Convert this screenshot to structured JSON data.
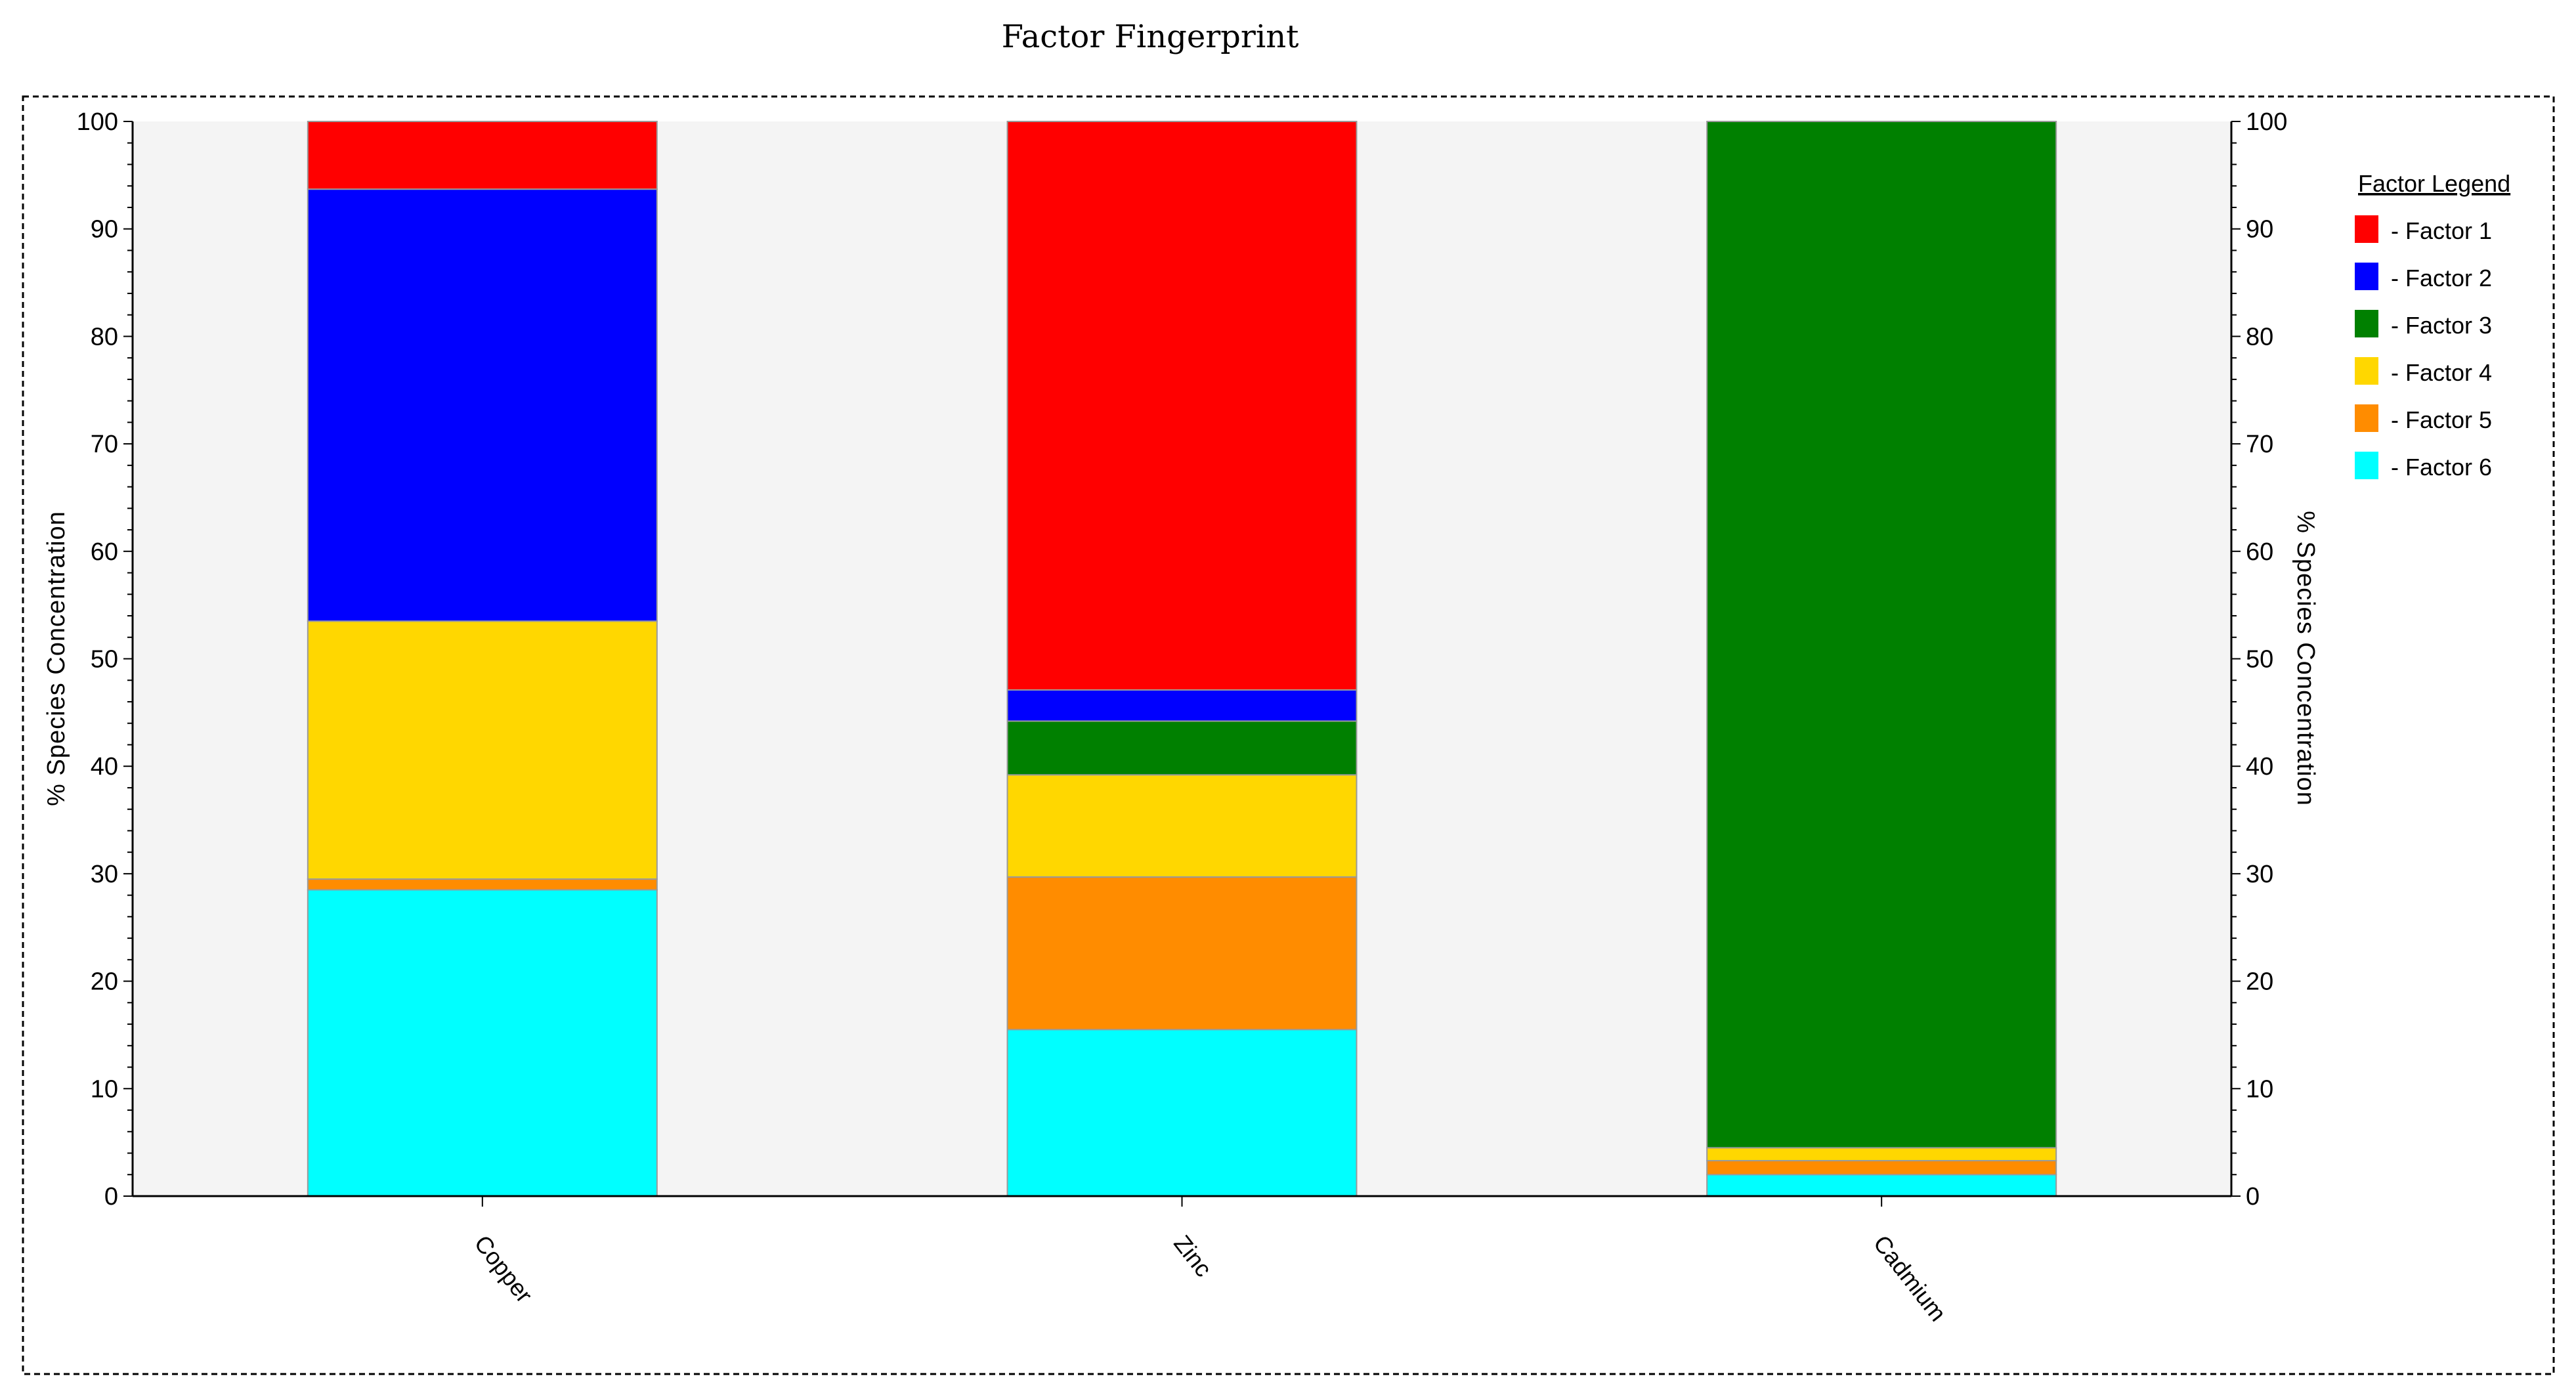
{
  "chart_data": {
    "type": "bar",
    "stacked": true,
    "title": "Factor Fingerprint",
    "ylabel": "% Species Concentration",
    "ylabel_right": "% Species Concentration",
    "ylim": [
      0,
      100
    ],
    "yticks": [
      0,
      10,
      20,
      30,
      40,
      50,
      60,
      70,
      80,
      90,
      100
    ],
    "categories": [
      "Copper",
      "Zinc",
      "Cadmium"
    ],
    "series": [
      {
        "name": "Factor 6",
        "color": "#00FFFF",
        "values": [
          28.5,
          15.5,
          2.0
        ]
      },
      {
        "name": "Factor 5",
        "color": "#FF8C00",
        "values": [
          1.0,
          14.2,
          1.3
        ]
      },
      {
        "name": "Factor 4",
        "color": "#FFD700",
        "values": [
          24.0,
          9.5,
          1.2
        ]
      },
      {
        "name": "Factor 3",
        "color": "#008000",
        "values": [
          0.0,
          5.0,
          95.5
        ]
      },
      {
        "name": "Factor 2",
        "color": "#0000FF",
        "values": [
          40.2,
          2.9,
          0.0
        ]
      },
      {
        "name": "Factor 1",
        "color": "#FF0000",
        "values": [
          6.3,
          52.9,
          0.0
        ]
      }
    ],
    "legend": {
      "title": "Factor Legend",
      "position": "right",
      "items": [
        {
          "label": "- Factor 1",
          "color": "#FF0000"
        },
        {
          "label": "- Factor 2",
          "color": "#0000FF"
        },
        {
          "label": "- Factor 3",
          "color": "#008000"
        },
        {
          "label": "- Factor 4",
          "color": "#FFD700"
        },
        {
          "label": "- Factor 5",
          "color": "#FF8C00"
        },
        {
          "label": "- Factor 6",
          "color": "#00FFFF"
        }
      ]
    },
    "plot_background": "#F4F4F4",
    "grid": false
  }
}
